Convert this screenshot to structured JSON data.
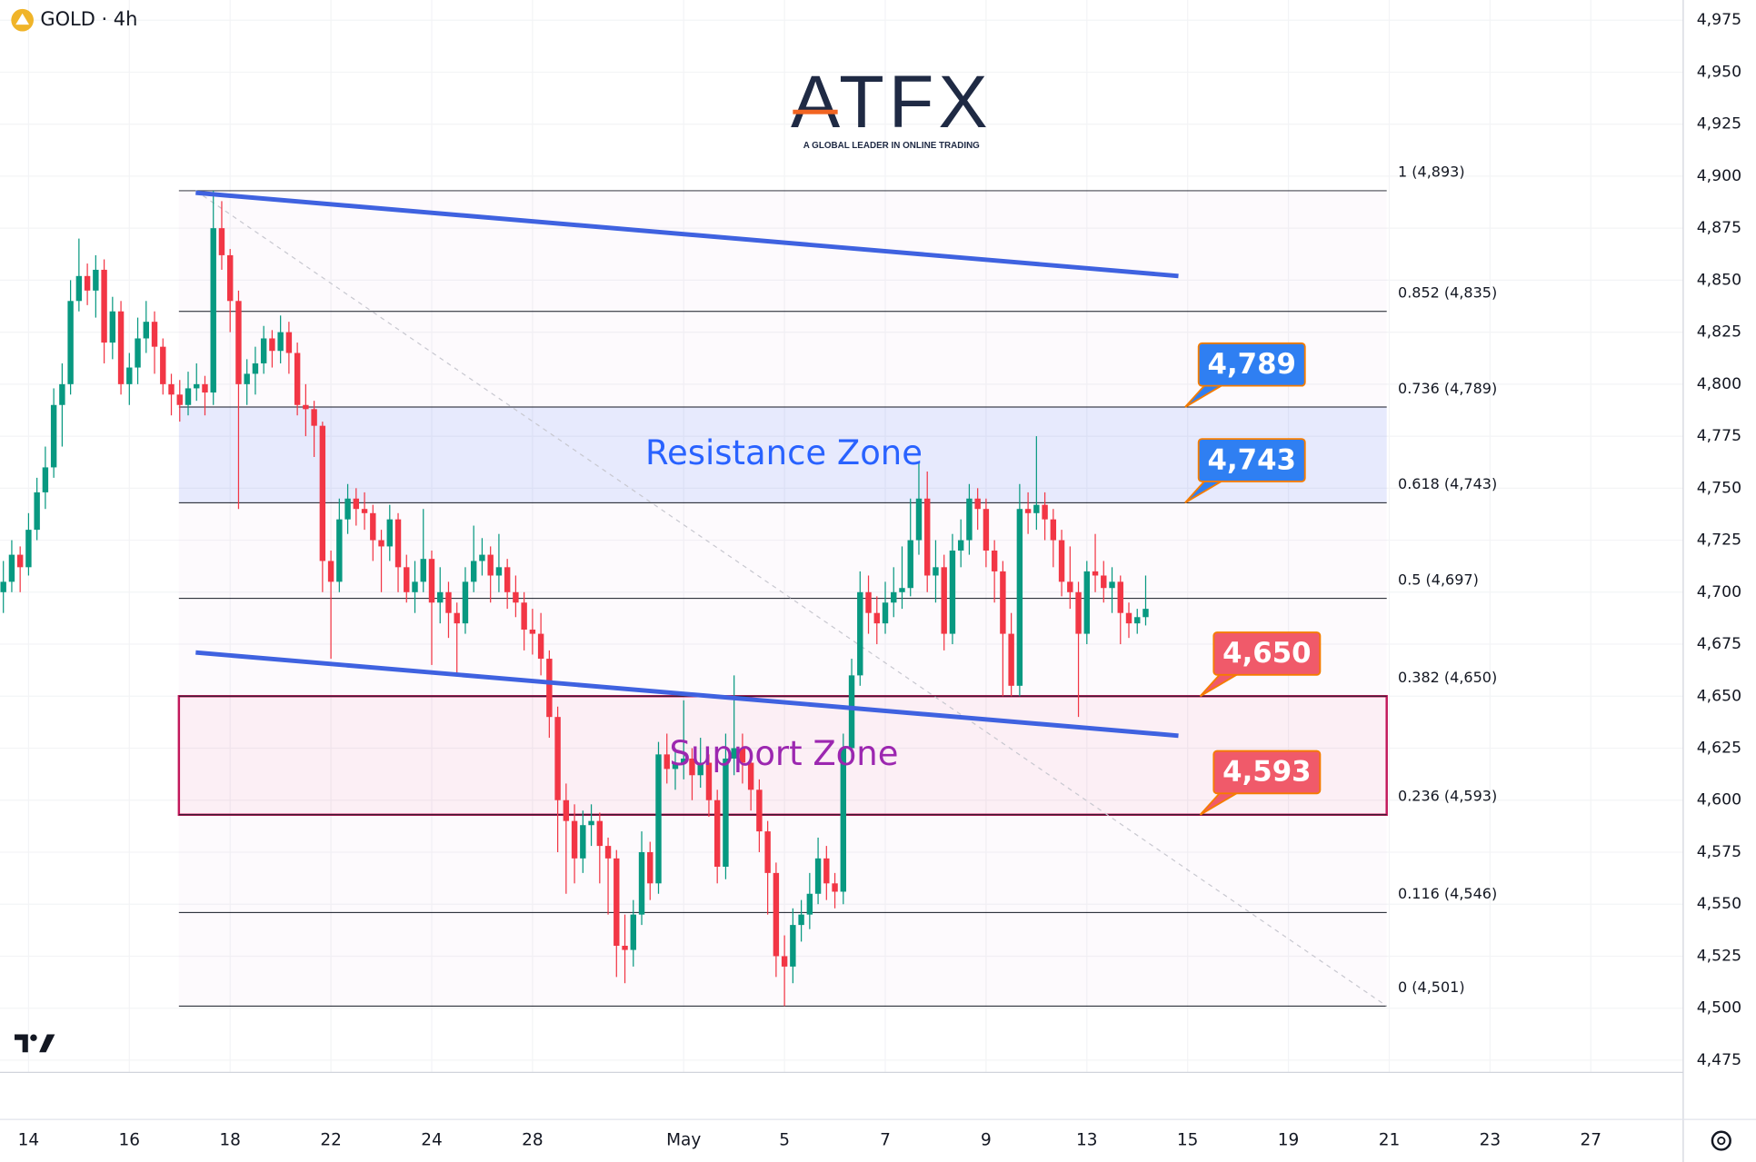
{
  "header": {
    "symbol": "GOLD · 4h",
    "logo": "ATFX",
    "tagline": "A GLOBAL LEADER IN ONLINE TRADING"
  },
  "chart_data": {
    "type": "candlestick",
    "up_color": "#089981",
    "down_color": "#f23645",
    "grid": true,
    "xlim": [
      -0.4,
      200
    ],
    "ylim": [
      4469.1,
      4984.7
    ],
    "xticks": [
      {
        "value": 3,
        "label": "14"
      },
      {
        "value": 15,
        "label": "16"
      },
      {
        "value": 27,
        "label": "18"
      },
      {
        "value": 39,
        "label": "22"
      },
      {
        "value": 51,
        "label": "24"
      },
      {
        "value": 63,
        "label": "28"
      },
      {
        "value": 81,
        "label": "May"
      },
      {
        "value": 93,
        "label": "5"
      },
      {
        "value": 105,
        "label": "7"
      },
      {
        "value": 117,
        "label": "9"
      },
      {
        "value": 129,
        "label": "13"
      },
      {
        "value": 141,
        "label": "15"
      },
      {
        "value": 153,
        "label": "19"
      },
      {
        "value": 165,
        "label": "21"
      },
      {
        "value": 177,
        "label": "23"
      },
      {
        "value": 189,
        "label": "27"
      }
    ],
    "yticks": [
      {
        "value": 4475,
        "label": "4,475"
      },
      {
        "value": 4500,
        "label": "4,500"
      },
      {
        "value": 4525,
        "label": "4,525"
      },
      {
        "value": 4550,
        "label": "4,550"
      },
      {
        "value": 4575,
        "label": "4,575"
      },
      {
        "value": 4600,
        "label": "4,600"
      },
      {
        "value": 4625,
        "label": "4,625"
      },
      {
        "value": 4650,
        "label": "4,650"
      },
      {
        "value": 4675,
        "label": "4,675"
      },
      {
        "value": 4700,
        "label": "4,700"
      },
      {
        "value": 4725,
        "label": "4,725"
      },
      {
        "value": 4750,
        "label": "4,750"
      },
      {
        "value": 4775,
        "label": "4,775"
      },
      {
        "value": 4800,
        "label": "4,800"
      },
      {
        "value": 4825,
        "label": "4,825"
      },
      {
        "value": 4850,
        "label": "4,850"
      },
      {
        "value": 4875,
        "label": "4,875"
      },
      {
        "value": 4900,
        "label": "4,900"
      },
      {
        "value": 4925,
        "label": "4,925"
      },
      {
        "value": 4950,
        "label": "4,950"
      },
      {
        "value": 4975,
        "label": "4,975"
      }
    ],
    "candles": [
      [
        4700,
        4715,
        4690,
        4705
      ],
      [
        4705,
        4725,
        4700,
        4718
      ],
      [
        4718,
        4722,
        4700,
        4712
      ],
      [
        4712,
        4738,
        4708,
        4730
      ],
      [
        4730,
        4755,
        4725,
        4748
      ],
      [
        4748,
        4770,
        4740,
        4760
      ],
      [
        4760,
        4798,
        4755,
        4790
      ],
      [
        4790,
        4810,
        4770,
        4800
      ],
      [
        4800,
        4850,
        4795,
        4840
      ],
      [
        4840,
        4870,
        4835,
        4852
      ],
      [
        4852,
        4858,
        4838,
        4845
      ],
      [
        4845,
        4862,
        4832,
        4855
      ],
      [
        4855,
        4860,
        4810,
        4820
      ],
      [
        4820,
        4842,
        4812,
        4835
      ],
      [
        4835,
        4840,
        4795,
        4800
      ],
      [
        4800,
        4815,
        4790,
        4808
      ],
      [
        4808,
        4832,
        4800,
        4822
      ],
      [
        4822,
        4840,
        4815,
        4830
      ],
      [
        4830,
        4835,
        4805,
        4818
      ],
      [
        4818,
        4822,
        4795,
        4800
      ],
      [
        4800,
        4805,
        4785,
        4795
      ],
      [
        4795,
        4802,
        4782,
        4790
      ],
      [
        4790,
        4806,
        4785,
        4798
      ],
      [
        4798,
        4810,
        4792,
        4800
      ],
      [
        4800,
        4804,
        4785,
        4796
      ],
      [
        4796,
        4893,
        4790,
        4875
      ],
      [
        4875,
        4888,
        4855,
        4862
      ],
      [
        4862,
        4865,
        4825,
        4840
      ],
      [
        4840,
        4845,
        4740,
        4800
      ],
      [
        4800,
        4812,
        4790,
        4805
      ],
      [
        4805,
        4818,
        4795,
        4810
      ],
      [
        4810,
        4828,
        4805,
        4822
      ],
      [
        4822,
        4826,
        4808,
        4816
      ],
      [
        4816,
        4833,
        4810,
        4825
      ],
      [
        4825,
        4830,
        4805,
        4815
      ],
      [
        4815,
        4820,
        4785,
        4790
      ],
      [
        4790,
        4800,
        4775,
        4788
      ],
      [
        4788,
        4792,
        4765,
        4780
      ],
      [
        4780,
        4782,
        4700,
        4715
      ],
      [
        4715,
        4720,
        4668,
        4705
      ],
      [
        4705,
        4745,
        4700,
        4735
      ],
      [
        4735,
        4752,
        4728,
        4745
      ],
      [
        4745,
        4750,
        4732,
        4740
      ],
      [
        4740,
        4748,
        4730,
        4738
      ],
      [
        4738,
        4742,
        4715,
        4725
      ],
      [
        4725,
        4730,
        4700,
        4722
      ],
      [
        4722,
        4742,
        4715,
        4735
      ],
      [
        4735,
        4738,
        4700,
        4712
      ],
      [
        4712,
        4718,
        4695,
        4700
      ],
      [
        4700,
        4715,
        4690,
        4705
      ],
      [
        4705,
        4740,
        4700,
        4716
      ],
      [
        4716,
        4720,
        4665,
        4695
      ],
      [
        4695,
        4712,
        4685,
        4700
      ],
      [
        4700,
        4705,
        4678,
        4690
      ],
      [
        4690,
        4695,
        4660,
        4685
      ],
      [
        4685,
        4712,
        4680,
        4705
      ],
      [
        4705,
        4732,
        4700,
        4715
      ],
      [
        4715,
        4726,
        4708,
        4718
      ],
      [
        4718,
        4722,
        4695,
        4708
      ],
      [
        4708,
        4728,
        4700,
        4712
      ],
      [
        4712,
        4716,
        4692,
        4700
      ],
      [
        4700,
        4708,
        4688,
        4695
      ],
      [
        4695,
        4700,
        4672,
        4682
      ],
      [
        4682,
        4692,
        4670,
        4680
      ],
      [
        4680,
        4690,
        4660,
        4668
      ],
      [
        4668,
        4672,
        4630,
        4640
      ],
      [
        4640,
        4645,
        4575,
        4600
      ],
      [
        4600,
        4608,
        4555,
        4590
      ],
      [
        4590,
        4598,
        4560,
        4572
      ],
      [
        4572,
        4595,
        4565,
        4588
      ],
      [
        4588,
        4598,
        4578,
        4590
      ],
      [
        4590,
        4594,
        4560,
        4578
      ],
      [
        4578,
        4582,
        4545,
        4572
      ],
      [
        4572,
        4576,
        4515,
        4530
      ],
      [
        4530,
        4545,
        4512,
        4528
      ],
      [
        4528,
        4552,
        4520,
        4545
      ],
      [
        4545,
        4585,
        4540,
        4575
      ],
      [
        4575,
        4580,
        4552,
        4560
      ],
      [
        4560,
        4628,
        4555,
        4622
      ],
      [
        4622,
        4632,
        4608,
        4615
      ],
      [
        4615,
        4625,
        4605,
        4618
      ],
      [
        4618,
        4648,
        4610,
        4620
      ],
      [
        4620,
        4625,
        4600,
        4612
      ],
      [
        4612,
        4630,
        4606,
        4618
      ],
      [
        4618,
        4622,
        4592,
        4600
      ],
      [
        4600,
        4605,
        4560,
        4568
      ],
      [
        4568,
        4632,
        4562,
        4620
      ],
      [
        4620,
        4660,
        4612,
        4625
      ],
      [
        4625,
        4632,
        4608,
        4618
      ],
      [
        4618,
        4624,
        4595,
        4605
      ],
      [
        4605,
        4610,
        4575,
        4585
      ],
      [
        4585,
        4590,
        4545,
        4565
      ],
      [
        4565,
        4570,
        4515,
        4525
      ],
      [
        4525,
        4535,
        4501,
        4520
      ],
      [
        4520,
        4548,
        4512,
        4540
      ],
      [
        4540,
        4552,
        4532,
        4545
      ],
      [
        4545,
        4565,
        4538,
        4555
      ],
      [
        4555,
        4582,
        4550,
        4572
      ],
      [
        4572,
        4578,
        4552,
        4560
      ],
      [
        4560,
        4565,
        4548,
        4556
      ],
      [
        4556,
        4632,
        4550,
        4625
      ],
      [
        4625,
        4668,
        4620,
        4660
      ],
      [
        4660,
        4710,
        4655,
        4700
      ],
      [
        4700,
        4708,
        4680,
        4690
      ],
      [
        4690,
        4698,
        4675,
        4685
      ],
      [
        4685,
        4705,
        4680,
        4695
      ],
      [
        4695,
        4712,
        4688,
        4700
      ],
      [
        4700,
        4722,
        4692,
        4702
      ],
      [
        4702,
        4745,
        4698,
        4725
      ],
      [
        4725,
        4762,
        4718,
        4745
      ],
      [
        4745,
        4758,
        4700,
        4708
      ],
      [
        4708,
        4725,
        4695,
        4712
      ],
      [
        4712,
        4718,
        4672,
        4680
      ],
      [
        4680,
        4728,
        4675,
        4720
      ],
      [
        4720,
        4735,
        4712,
        4725
      ],
      [
        4725,
        4752,
        4718,
        4745
      ],
      [
        4745,
        4750,
        4730,
        4740
      ],
      [
        4740,
        4745,
        4712,
        4720
      ],
      [
        4720,
        4725,
        4695,
        4710
      ],
      [
        4710,
        4715,
        4650,
        4680
      ],
      [
        4680,
        4690,
        4650,
        4655
      ],
      [
        4655,
        4752,
        4650,
        4740
      ],
      [
        4740,
        4748,
        4728,
        4738
      ],
      [
        4738,
        4775,
        4730,
        4742
      ],
      [
        4742,
        4748,
        4725,
        4735
      ],
      [
        4735,
        4740,
        4712,
        4725
      ],
      [
        4725,
        4730,
        4698,
        4705
      ],
      [
        4705,
        4722,
        4692,
        4700
      ],
      [
        4700,
        4705,
        4640,
        4680
      ],
      [
        4680,
        4715,
        4675,
        4710
      ],
      [
        4710,
        4728,
        4700,
        4708
      ],
      [
        4708,
        4715,
        4695,
        4702
      ],
      [
        4702,
        4712,
        4690,
        4705
      ],
      [
        4705,
        4708,
        4675,
        4690
      ],
      [
        4690,
        4695,
        4678,
        4685
      ],
      [
        4685,
        4692,
        4680,
        4688
      ],
      [
        4688,
        4708,
        4684,
        4692
      ]
    ],
    "fib_x": [
      20.9,
      164.7
    ],
    "fib_levels": [
      {
        "value": 4893,
        "label": "1 (4,893)"
      },
      {
        "value": 4835,
        "label": "0.852 (4,835)"
      },
      {
        "value": 4789,
        "label": "0.736 (4,789)"
      },
      {
        "value": 4743,
        "label": "0.618 (4,743)"
      },
      {
        "value": 4697,
        "label": "0.5 (4,697)"
      },
      {
        "value": 4650,
        "label": "0.382 (4,650)"
      },
      {
        "value": 4593,
        "label": "0.236 (4,593)"
      },
      {
        "value": 4546,
        "label": "0.116 (4,546)"
      },
      {
        "value": 4501,
        "label": "0 (4,501)"
      }
    ],
    "fib_trend": {
      "x": [
        22.9,
        164.7
      ],
      "y": [
        4893,
        4501
      ]
    },
    "zones": [
      {
        "name": "Resistance Zone",
        "from": 4743,
        "to": 4789,
        "color": "#2962ff"
      },
      {
        "name": "Support Zone",
        "from": 4593,
        "to": 4650,
        "color": "#9c27b0"
      }
    ],
    "trendlines": [
      {
        "x": [
          22.9,
          139.9
        ],
        "y": [
          4892,
          4852
        ],
        "color": "#3f62e0"
      },
      {
        "x": [
          22.9,
          139.9
        ],
        "y": [
          4671,
          4631
        ],
        "color": "#3f62e0"
      }
    ],
    "callouts": [
      {
        "x": 140.7,
        "value": 4789,
        "label": "4,789",
        "color": "#2f7ff2"
      },
      {
        "x": 140.7,
        "value": 4743,
        "label": "4,743",
        "color": "#2f7ff2"
      },
      {
        "x": 142.5,
        "value": 4650,
        "label": "4,650",
        "color": "#f05a6a"
      },
      {
        "x": 142.5,
        "value": 4593,
        "label": "4,593",
        "color": "#f05a6a"
      }
    ]
  }
}
